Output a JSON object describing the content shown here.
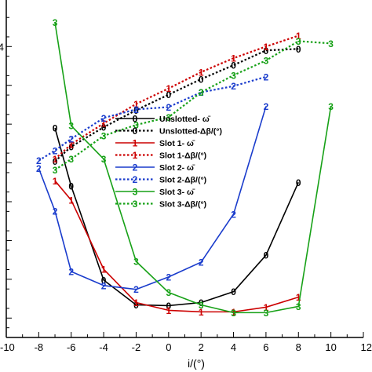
{
  "chart_data": {
    "type": "line",
    "xlabel": "i/(°)",
    "ylabel": "",
    "xlim": [
      -10,
      12
    ],
    "x_ticks": [
      "-10",
      "-8",
      "-6",
      "-4",
      "-2",
      "0",
      "2",
      "4",
      "6",
      "8",
      "10",
      "12"
    ],
    "y_tick_labels": [
      "4",
      "",
      "",
      "",
      "",
      ""
    ],
    "grid": false,
    "legend_position": "center",
    "series": [
      {
        "name": "Unslotted- ω̄",
        "marker": "0",
        "color": "#000000",
        "dash": "solid",
        "x": [
          -7,
          -6,
          -4,
          -2,
          0,
          2,
          4,
          6,
          8
        ],
        "y": [
          0.495,
          0.42,
          0.299,
          0.267,
          0.266,
          0.27,
          0.284,
          0.331,
          0.425
        ]
      },
      {
        "name": "Unslotted-Δβ/(°)",
        "marker": "0",
        "color": "#000000",
        "dash": "dotted",
        "x": [
          -7,
          -6,
          -4,
          -2,
          0,
          2,
          4,
          6,
          8
        ],
        "y": [
          0.452,
          0.471,
          0.496,
          0.518,
          0.538,
          0.558,
          0.576,
          0.595,
          0.597
        ]
      },
      {
        "name": "Slot 1- ω̄",
        "marker": "1",
        "color": "#cc0000",
        "dash": "solid",
        "x": [
          -7,
          -6,
          -4,
          -2,
          0,
          2,
          4,
          6,
          8
        ],
        "y": [
          0.427,
          0.402,
          0.313,
          0.27,
          0.26,
          0.258,
          0.258,
          0.264,
          0.277
        ]
      },
      {
        "name": "Slot 1-Δβ/(°)",
        "marker": "1",
        "color": "#cc0000",
        "dash": "dotted",
        "x": [
          -7,
          -6,
          -4,
          -2,
          0,
          2,
          4,
          6,
          8
        ],
        "y": [
          0.455,
          0.474,
          0.501,
          0.526,
          0.546,
          0.567,
          0.585,
          0.6,
          0.614
        ]
      },
      {
        "name": "Slot 2- ω̄",
        "marker": "2",
        "color": "#1a3ccc",
        "dash": "solid",
        "x": [
          -8,
          -7,
          -6,
          -4,
          -2,
          0,
          2,
          4,
          6
        ],
        "y": [
          0.443,
          0.388,
          0.31,
          0.292,
          0.287,
          0.303,
          0.322,
          0.384,
          0.523
        ]
      },
      {
        "name": "Slot 2-Δβ/(°)",
        "marker": "2",
        "color": "#1a3ccc",
        "dash": "dotted",
        "x": [
          -8,
          -7,
          -6,
          -4,
          -2,
          0,
          2,
          4,
          6
        ],
        "y": [
          0.453,
          0.466,
          0.481,
          0.508,
          0.519,
          0.522,
          0.541,
          0.549,
          0.561
        ]
      },
      {
        "name": "Slot 3- ω̄",
        "marker": "3",
        "color": "#17a117",
        "dash": "solid",
        "x": [
          -7,
          -6,
          -4,
          -2,
          0,
          2,
          4,
          6,
          8,
          10
        ],
        "y": [
          0.631,
          0.498,
          0.455,
          0.323,
          0.283,
          0.267,
          0.257,
          0.257,
          0.265,
          0.523
        ]
      },
      {
        "name": "Slot 3-Δβ/(°)",
        "marker": "3",
        "color": "#17a117",
        "dash": "dotted",
        "x": [
          -7,
          -6,
          -4,
          -2,
          0,
          2,
          4,
          6,
          8,
          10
        ],
        "y": [
          0.441,
          0.455,
          0.485,
          0.499,
          0.509,
          0.541,
          0.563,
          0.582,
          0.607,
          0.604
        ]
      }
    ]
  }
}
